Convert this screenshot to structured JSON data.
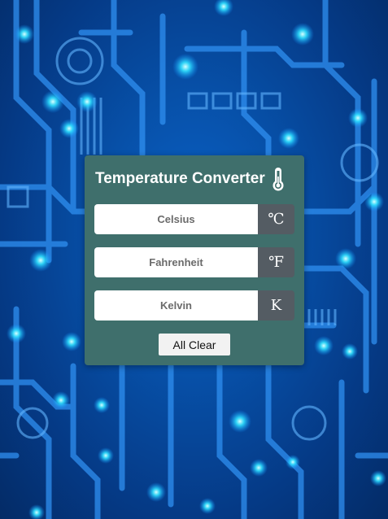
{
  "converter": {
    "title": "Temperature Converter",
    "title_icon": "thermometer-icon",
    "fields": [
      {
        "placeholder": "Celsius",
        "value": "",
        "unit": "℃"
      },
      {
        "placeholder": "Fahrenheit",
        "value": "",
        "unit": "℉"
      },
      {
        "placeholder": "Kelvin",
        "value": "",
        "unit": "K"
      }
    ],
    "clear_label": "All Clear"
  },
  "colors": {
    "card_background": "#3f6f6c",
    "unit_background": "#545c63",
    "background_blue": "#0750a8",
    "glow": "#22d3f5"
  }
}
